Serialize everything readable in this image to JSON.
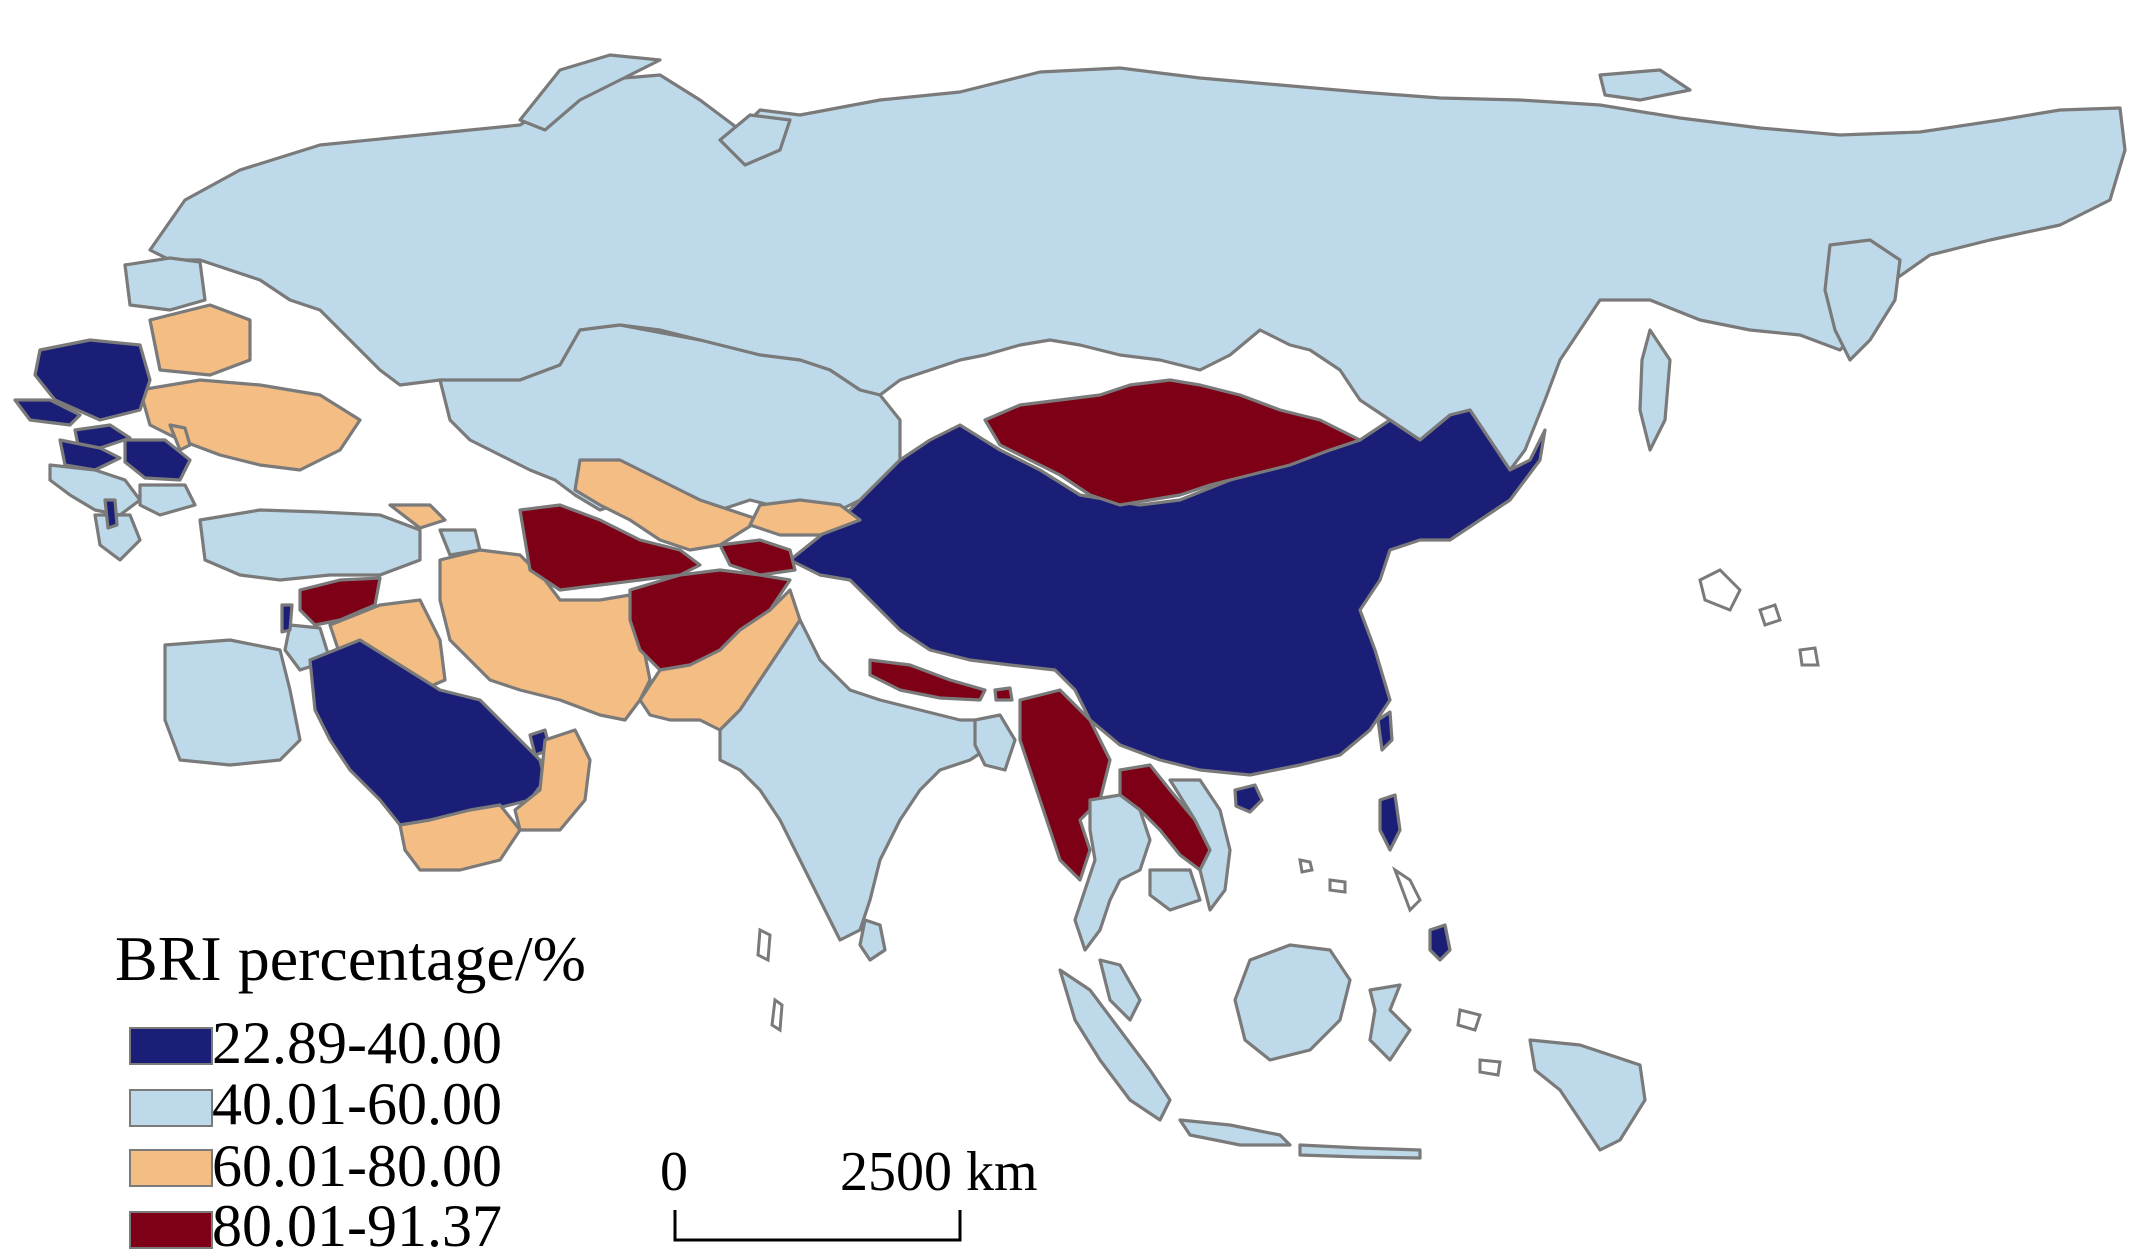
{
  "legend": {
    "title": "BRI percentage/%",
    "classes": [
      {
        "label": "22.89-40.00",
        "color": "#1b1e76"
      },
      {
        "label": "40.01-60.00",
        "color": "#bedaea"
      },
      {
        "label": "60.01-80.00",
        "color": "#f4bd84"
      },
      {
        "label": "80.01-91.37",
        "color": "#7d0016"
      }
    ]
  },
  "scale_bar": {
    "start_label": "0",
    "end_label": "2500 km"
  }
}
